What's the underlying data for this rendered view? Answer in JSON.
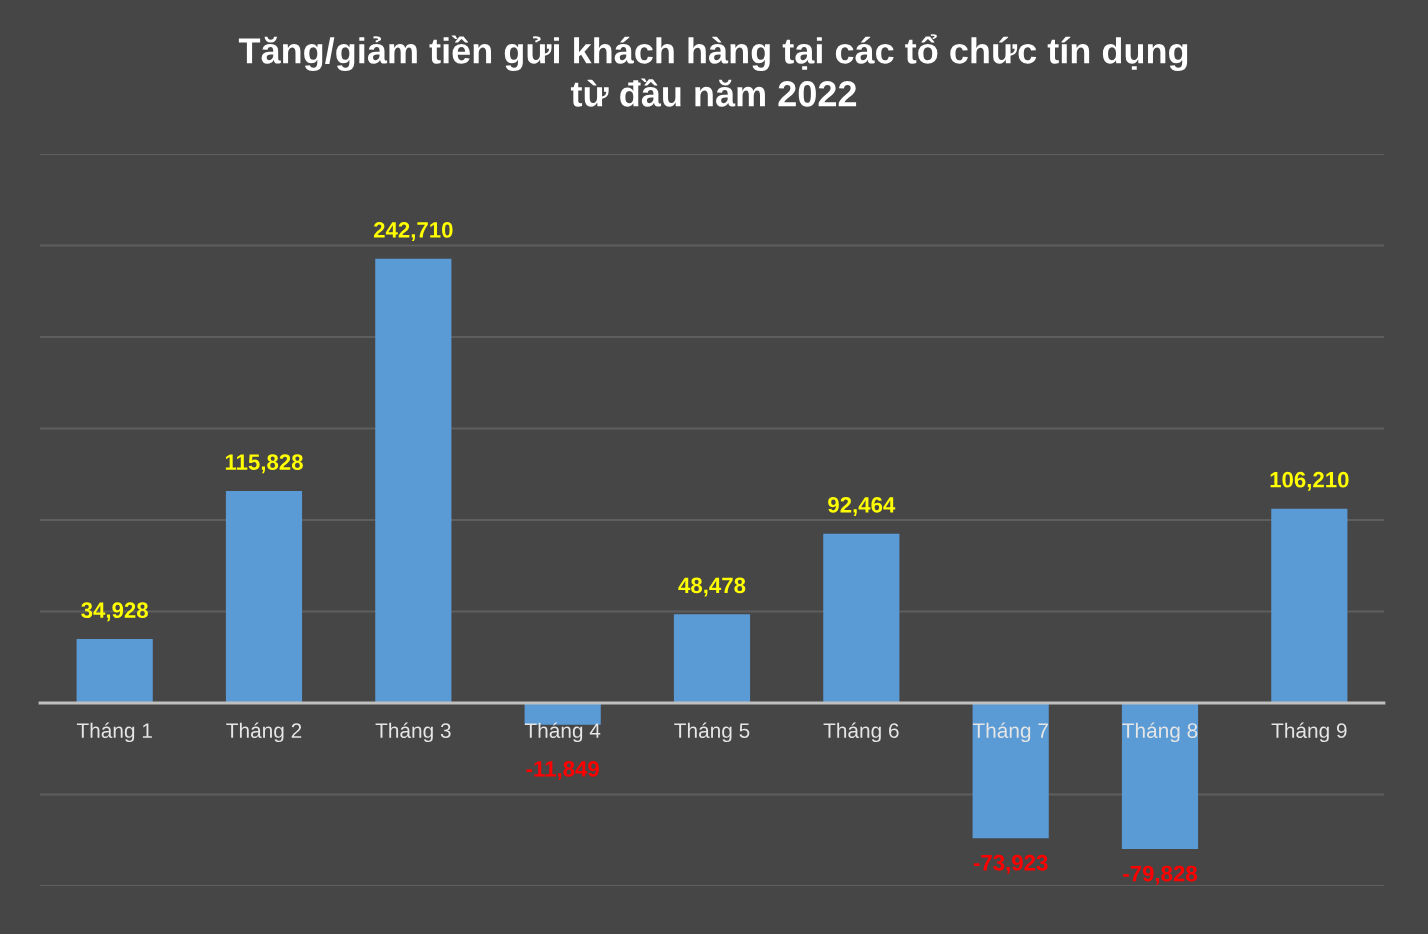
{
  "chart_data": {
    "type": "bar",
    "title": "Tăng/giảm tiền gửi khách hàng tại các tổ chức tín dụng\ntừ đầu năm 2022",
    "categories": [
      "Tháng 1",
      "Tháng 2",
      "Tháng 3",
      "Tháng 4",
      "Tháng 5",
      "Tháng 6",
      "Tháng 7",
      "Tháng 8",
      "Tháng 9"
    ],
    "values": [
      34928,
      115828,
      242710,
      -11849,
      48478,
      92464,
      -73923,
      -79828,
      106210
    ],
    "value_labels": [
      "34,928",
      "115,828",
      "242,710",
      "-11,849",
      "48,478",
      "92,464",
      "-73,923",
      "-79,828",
      "106,210"
    ],
    "color": "#5b9bd5",
    "grid": "y",
    "tick_labels": "x"
  }
}
